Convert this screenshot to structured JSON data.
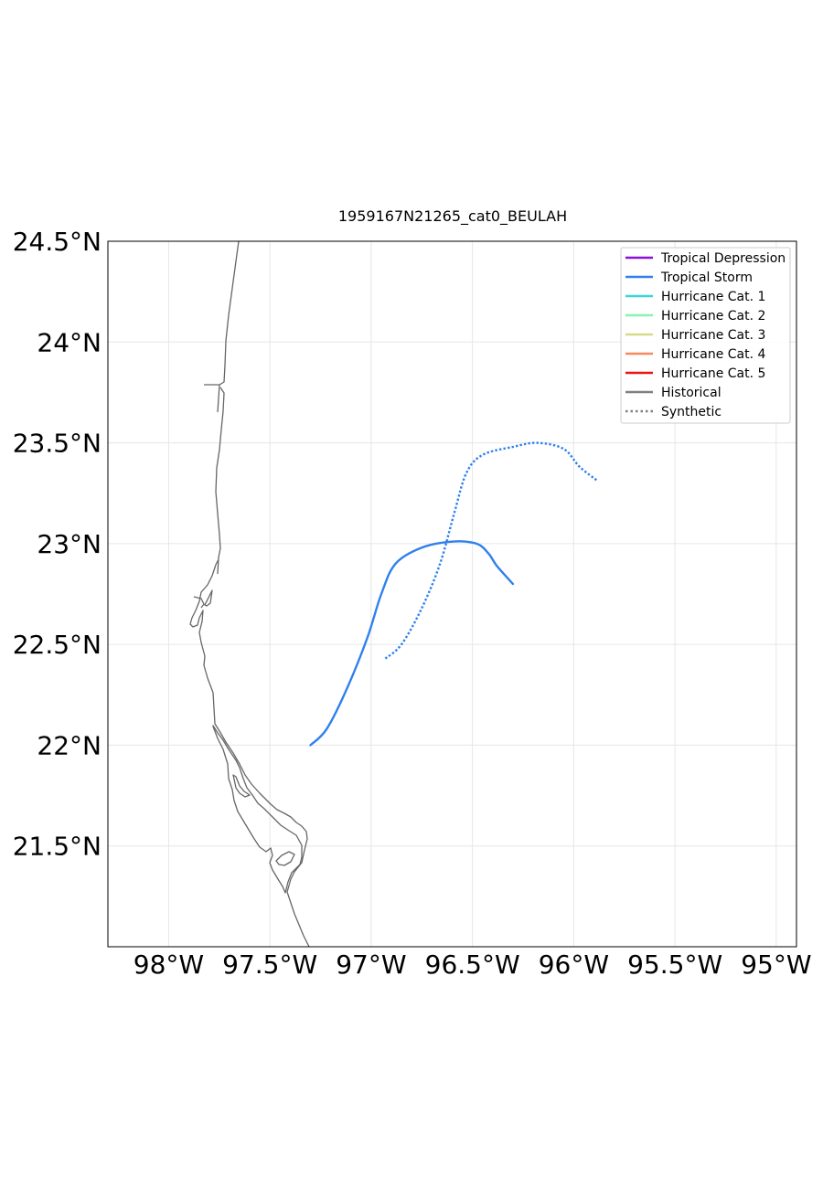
{
  "title": "1959167N21265_cat0_BEULAH",
  "colors": {
    "tropical_depression": "#8a10d8",
    "tropical_storm": "#2f80ee",
    "hurricane_cat1": "#38d6d6",
    "hurricane_cat2": "#86f5b2",
    "hurricane_cat3": "#d6dc86",
    "hurricane_cat4": "#f58a5a",
    "hurricane_cat5": "#ee1111",
    "historical": "#808080",
    "coastline": "#666666",
    "grid": "#e6e6e6"
  },
  "legend": [
    {
      "label": "Tropical Depression",
      "color": "#8a10d8",
      "style": "solid"
    },
    {
      "label": "Tropical Storm",
      "color": "#2f80ee",
      "style": "solid"
    },
    {
      "label": "Hurricane Cat. 1",
      "color": "#38d6d6",
      "style": "solid"
    },
    {
      "label": "Hurricane Cat. 2",
      "color": "#86f5b2",
      "style": "solid"
    },
    {
      "label": "Hurricane Cat. 3",
      "color": "#d6dc86",
      "style": "solid"
    },
    {
      "label": "Hurricane Cat. 4",
      "color": "#f58a5a",
      "style": "solid"
    },
    {
      "label": "Hurricane Cat. 5",
      "color": "#ee1111",
      "style": "solid"
    },
    {
      "label": "Historical",
      "color": "#808080",
      "style": "solid"
    },
    {
      "label": "Synthetic",
      "color": "#808080",
      "style": "dotted"
    }
  ],
  "chart_data": {
    "type": "line",
    "title": "1959167N21265_cat0_BEULAH",
    "xlim": [
      -98.3,
      -94.9
    ],
    "ylim": [
      21.0,
      24.5
    ],
    "xticks": [
      -98.0,
      -97.5,
      -97.0,
      -96.5,
      -96.0,
      -95.5,
      -95.0
    ],
    "xtick_labels": [
      "98°W",
      "97.5°W",
      "97°W",
      "96.5°W",
      "96°W",
      "95.5°W",
      "95°W"
    ],
    "yticks": [
      21.5,
      22.0,
      22.5,
      23.0,
      23.5,
      24.0,
      24.5
    ],
    "ytick_labels": [
      "21.5°N",
      "22°N",
      "22.5°N",
      "23°N",
      "23.5°N",
      "24°N",
      "24.5°N"
    ],
    "grid": true,
    "legend_position": "top-right",
    "series": [
      {
        "name": "Historical",
        "category": "Tropical Storm",
        "style": "solid",
        "points": [
          [
            -97.3,
            22.0
          ],
          [
            -97.22,
            22.08
          ],
          [
            -97.12,
            22.28
          ],
          [
            -97.02,
            22.53
          ],
          [
            -96.95,
            22.75
          ],
          [
            -96.88,
            22.9
          ],
          [
            -96.75,
            22.98
          ],
          [
            -96.6,
            23.01
          ],
          [
            -96.48,
            23.0
          ],
          [
            -96.42,
            22.95
          ],
          [
            -96.38,
            22.89
          ],
          [
            -96.3,
            22.8
          ]
        ]
      },
      {
        "name": "Synthetic",
        "category": "Tropical Storm",
        "style": "dotted",
        "points": [
          [
            -96.93,
            22.43
          ],
          [
            -96.85,
            22.5
          ],
          [
            -96.75,
            22.68
          ],
          [
            -96.66,
            22.9
          ],
          [
            -96.59,
            23.15
          ],
          [
            -96.53,
            23.35
          ],
          [
            -96.45,
            23.44
          ],
          [
            -96.3,
            23.48
          ],
          [
            -96.18,
            23.5
          ],
          [
            -96.05,
            23.47
          ],
          [
            -95.97,
            23.38
          ],
          [
            -95.88,
            23.31
          ]
        ]
      }
    ]
  }
}
